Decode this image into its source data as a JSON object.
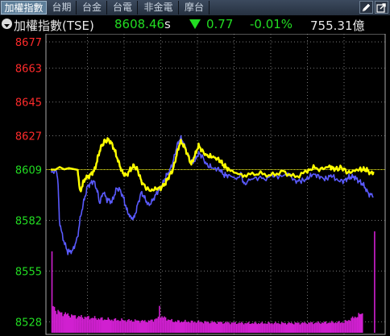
{
  "tabs": [
    {
      "label": "加權指數",
      "active": true
    },
    {
      "label": "台期",
      "active": false
    },
    {
      "label": "台金",
      "active": false
    },
    {
      "label": "台電",
      "active": false
    },
    {
      "label": "非金電",
      "active": false
    },
    {
      "label": "摩台",
      "active": false
    }
  ],
  "toolbar": {
    "edit_icon": "pencil-icon",
    "export_icon": "export-icon"
  },
  "quote": {
    "name": "加權指數(TSE)",
    "price": "8608.46",
    "suffix": "s",
    "direction": "down",
    "change": "0.77",
    "change_pct": "-0.01%",
    "volume": "755.31億"
  },
  "colors": {
    "up": "#ff2b2b",
    "down": "#22dd22",
    "flat": "#ffff00",
    "index_line": "#ffff00",
    "breadth_line": "#5a5aff",
    "volume": "#d020d0",
    "grid": "#777777",
    "price_text": "#22dd22",
    "chart_border": "#aaaaaa"
  },
  "chart_data": {
    "type": "line",
    "reference": 8609,
    "ylim": [
      8523,
      8677
    ],
    "y_ticks": [
      {
        "value": 8677,
        "label": "8677",
        "color": "up"
      },
      {
        "value": 8663,
        "label": "8663",
        "color": "up"
      },
      {
        "value": 8645,
        "label": "8645",
        "color": "up"
      },
      {
        "value": 8627,
        "label": "8627",
        "color": "up"
      },
      {
        "value": 8609,
        "label": "8609",
        "color": "down"
      },
      {
        "value": 8582,
        "label": "8582",
        "color": "down"
      },
      {
        "value": 8555,
        "label": "8555",
        "color": "down"
      },
      {
        "value": 8528,
        "label": "8528",
        "color": "down"
      }
    ],
    "x_steps": 271,
    "x_gridlines": [
      30,
      60,
      90,
      120,
      150,
      180,
      210,
      240
    ],
    "series": [
      {
        "key": "index",
        "points": [
          [
            0,
            8609
          ],
          [
            22,
            8609
          ],
          [
            24,
            8597
          ],
          [
            26,
            8601
          ],
          [
            28,
            8604
          ],
          [
            32,
            8606
          ],
          [
            36,
            8609
          ],
          [
            38,
            8614
          ],
          [
            40,
            8619
          ],
          [
            42,
            8622
          ],
          [
            44,
            8624
          ],
          [
            47,
            8625
          ],
          [
            50,
            8623
          ],
          [
            53,
            8618
          ],
          [
            56,
            8612
          ],
          [
            59,
            8607
          ],
          [
            62,
            8606
          ],
          [
            65,
            8609
          ],
          [
            68,
            8611
          ],
          [
            71,
            8609
          ],
          [
            74,
            8603
          ],
          [
            78,
            8599
          ],
          [
            82,
            8598
          ],
          [
            86,
            8599
          ],
          [
            90,
            8599
          ],
          [
            94,
            8602
          ],
          [
            97,
            8606
          ],
          [
            100,
            8609
          ],
          [
            103,
            8617
          ],
          [
            106,
            8624
          ],
          [
            109,
            8622
          ],
          [
            112,
            8617
          ],
          [
            115,
            8612
          ],
          [
            118,
            8617
          ],
          [
            121,
            8622
          ],
          [
            124,
            8619
          ],
          [
            128,
            8616
          ],
          [
            133,
            8616
          ],
          [
            138,
            8614
          ],
          [
            142,
            8611
          ],
          [
            146,
            8609
          ],
          [
            152,
            8607
          ],
          [
            160,
            8606
          ],
          [
            170,
            8607
          ],
          [
            180,
            8606
          ],
          [
            190,
            8608
          ],
          [
            200,
            8605
          ],
          [
            210,
            8608
          ],
          [
            215,
            8610
          ],
          [
            222,
            8609
          ],
          [
            228,
            8611
          ],
          [
            232,
            8609
          ],
          [
            238,
            8610
          ],
          [
            244,
            8607
          ],
          [
            250,
            8609
          ],
          [
            255,
            8609
          ],
          [
            258,
            8609
          ],
          [
            262,
            8607
          ],
          [
            264,
            8608
          ]
        ]
      },
      {
        "key": "breadth",
        "points": [
          [
            0,
            8608
          ],
          [
            5,
            8608
          ],
          [
            6,
            8601
          ],
          [
            7,
            8582
          ],
          [
            10,
            8572
          ],
          [
            14,
            8565
          ],
          [
            18,
            8566
          ],
          [
            22,
            8573
          ],
          [
            24,
            8583
          ],
          [
            27,
            8592
          ],
          [
            30,
            8600
          ],
          [
            33,
            8602
          ],
          [
            35,
            8603
          ],
          [
            38,
            8598
          ],
          [
            40,
            8591
          ],
          [
            43,
            8597
          ],
          [
            46,
            8593
          ],
          [
            50,
            8592
          ],
          [
            54,
            8599
          ],
          [
            57,
            8598
          ],
          [
            60,
            8593
          ],
          [
            62,
            8588
          ],
          [
            65,
            8584
          ],
          [
            68,
            8583
          ],
          [
            71,
            8590
          ],
          [
            74,
            8597
          ],
          [
            77,
            8594
          ],
          [
            80,
            8590
          ],
          [
            84,
            8593
          ],
          [
            88,
            8598
          ],
          [
            90,
            8599
          ],
          [
            94,
            8605
          ],
          [
            97,
            8608
          ],
          [
            100,
            8613
          ],
          [
            103,
            8621
          ],
          [
            106,
            8626
          ],
          [
            109,
            8623
          ],
          [
            112,
            8617
          ],
          [
            115,
            8613
          ],
          [
            118,
            8614
          ],
          [
            121,
            8618
          ],
          [
            124,
            8616
          ],
          [
            128,
            8611
          ],
          [
            133,
            8610
          ],
          [
            138,
            8609
          ],
          [
            142,
            8606
          ],
          [
            146,
            8606
          ],
          [
            152,
            8604
          ],
          [
            156,
            8607
          ],
          [
            158,
            8601
          ],
          [
            162,
            8603
          ],
          [
            168,
            8605
          ],
          [
            175,
            8604
          ],
          [
            182,
            8606
          ],
          [
            188,
            8605
          ],
          [
            194,
            8607
          ],
          [
            200,
            8603
          ],
          [
            205,
            8603
          ],
          [
            210,
            8604
          ],
          [
            215,
            8607
          ],
          [
            220,
            8605
          ],
          [
            225,
            8604
          ],
          [
            230,
            8606
          ],
          [
            235,
            8603
          ],
          [
            240,
            8603
          ],
          [
            244,
            8605
          ],
          [
            248,
            8605
          ],
          [
            252,
            8603
          ],
          [
            256,
            8601
          ],
          [
            260,
            8596
          ],
          [
            264,
            8595
          ]
        ]
      }
    ],
    "volume_levels": [
      {
        "x": 0,
        "v": 0.0
      },
      {
        "x": 1,
        "v": 0.75
      },
      {
        "x": 2,
        "v": 0.28
      },
      {
        "x": 5,
        "v": 0.22
      },
      {
        "x": 10,
        "v": 0.2
      },
      {
        "x": 20,
        "v": 0.17
      },
      {
        "x": 30,
        "v": 0.16
      },
      {
        "x": 45,
        "v": 0.14
      },
      {
        "x": 60,
        "v": 0.13
      },
      {
        "x": 80,
        "v": 0.12
      },
      {
        "x": 88,
        "v": 0.15
      },
      {
        "x": 89,
        "v": 0.3
      },
      {
        "x": 90,
        "v": 0.17
      },
      {
        "x": 100,
        "v": 0.12
      },
      {
        "x": 130,
        "v": 0.11
      },
      {
        "x": 160,
        "v": 0.1
      },
      {
        "x": 200,
        "v": 0.1
      },
      {
        "x": 240,
        "v": 0.11
      },
      {
        "x": 255,
        "v": 0.2
      },
      {
        "x": 256,
        "v": 0.0
      },
      {
        "x": 264,
        "v": 0.0
      },
      {
        "x": 265,
        "v": 1.0
      },
      {
        "x": 266,
        "v": 0.0
      }
    ]
  }
}
